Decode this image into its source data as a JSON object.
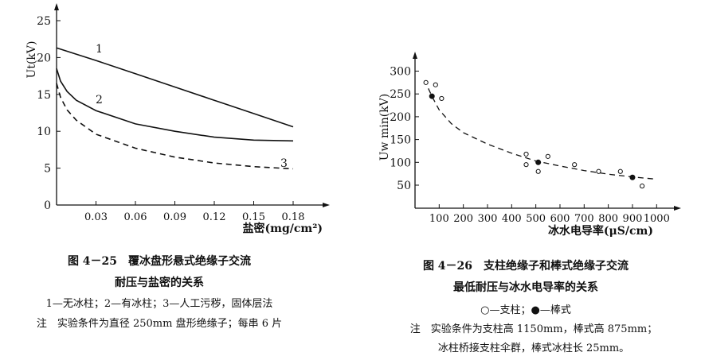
{
  "chart_data": [
    {
      "type": "line",
      "title": "",
      "xlabel": "盐密(mg/cm²)",
      "ylabel": "Ut(kV)",
      "xlim": [
        0,
        0.2
      ],
      "ylim": [
        0,
        25
      ],
      "xticks": [
        "0.03",
        "0.06",
        "0.09",
        "0.12",
        "0.15",
        "0.18"
      ],
      "yticks": [
        "0",
        "5",
        "10",
        "15",
        "20",
        "25"
      ],
      "grid": false,
      "series": [
        {
          "name": "1",
          "style": "solid",
          "x": [
            0,
            0.03,
            0.06,
            0.09,
            0.12,
            0.15,
            0.18
          ],
          "y": [
            21.3,
            19.6,
            17.8,
            16.0,
            14.2,
            12.4,
            10.6
          ]
        },
        {
          "name": "2",
          "style": "solid",
          "x": [
            0,
            0.003,
            0.008,
            0.015,
            0.03,
            0.06,
            0.09,
            0.12,
            0.15,
            0.18
          ],
          "y": [
            18.5,
            16.8,
            15.4,
            14.2,
            12.8,
            11.0,
            10.0,
            9.2,
            8.8,
            8.7
          ]
        },
        {
          "name": "3",
          "style": "dashed",
          "x": [
            0,
            0.003,
            0.008,
            0.015,
            0.03,
            0.06,
            0.09,
            0.12,
            0.15,
            0.18
          ],
          "y": [
            16.5,
            14.6,
            12.9,
            11.5,
            9.6,
            7.7,
            6.5,
            5.7,
            5.2,
            4.9
          ]
        }
      ]
    },
    {
      "type": "scatter",
      "title": "",
      "xlabel": "冰水电导率(μS/cm)",
      "ylabel": "Uw min(kV)",
      "xlim": [
        0,
        1100
      ],
      "ylim": [
        0,
        320
      ],
      "xticks": [
        "100",
        "200",
        "300",
        "400",
        "500",
        "600",
        "700",
        "800",
        "900",
        "1000"
      ],
      "yticks": [
        "50",
        "100",
        "150",
        "200",
        "250",
        "300"
      ],
      "grid": false,
      "series": [
        {
          "name": "支柱",
          "marker": "open-circle",
          "x": [
            45,
            85,
            110,
            460,
            460,
            510,
            550,
            660,
            760,
            850,
            940
          ],
          "y": [
            275,
            270,
            240,
            118,
            95,
            80,
            113,
            95,
            80,
            80,
            48
          ]
        },
        {
          "name": "棒式",
          "marker": "filled-circle",
          "x": [
            70,
            510,
            900
          ],
          "y": [
            245,
            100,
            67
          ]
        }
      ],
      "fit_curve": {
        "style": "dashed",
        "x": [
          55,
          70,
          100,
          150,
          200,
          300,
          400,
          500,
          600,
          700,
          800,
          900,
          1000
        ],
        "y": [
          262,
          245,
          215,
          185,
          165,
          140,
          120,
          103,
          92,
          82,
          74,
          68,
          63
        ]
      }
    }
  ],
  "captions": {
    "left": {
      "title": "图 4－25　覆冰盘形悬式绝缘子交流",
      "title2": "耐压与盐密的关系",
      "legend": "1—无冰柱；2—有冰柱；3—人工污秽，固体层法",
      "note": "注　实验条件为直径 250mm 盘形绝缘子；每串 6 片"
    },
    "right": {
      "title": "图 4－26　支柱绝缘子和棒式绝缘子交流",
      "title2": "最低耐压与冰水电导率的关系",
      "legend": "○—支柱；●—棒式",
      "note": "注　实验条件为支柱高 1150mm，棒式高 875mm；",
      "note2": "冰柱桥接支柱伞群，棒式冰柱长 25mm。"
    }
  }
}
